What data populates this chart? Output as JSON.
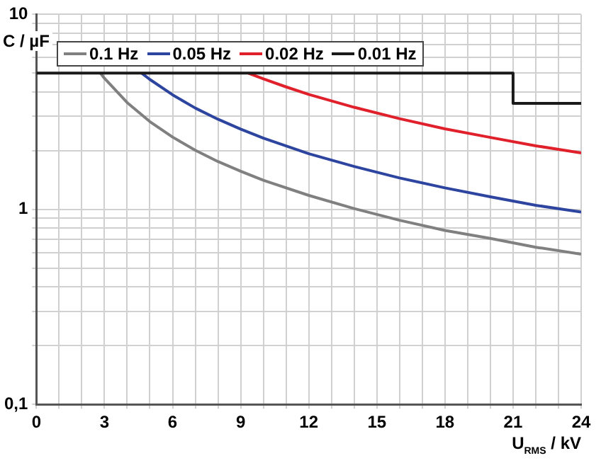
{
  "chart_data": {
    "type": "line",
    "ylabel": "C / µF",
    "xlabel": "U$_{RMS}$ / kV",
    "log": "y",
    "grid": true,
    "legend": "top left",
    "marker": "none",
    "line_style": "solid",
    "xlim": [
      0,
      24
    ],
    "xticks": [
      0,
      {
        "value": 1,
        "label": null
      },
      {
        "value": 2,
        "label": null
      },
      3,
      {
        "value": 4,
        "label": null
      },
      {
        "value": 5,
        "label": null
      },
      6,
      {
        "value": 7,
        "label": null
      },
      {
        "value": 8,
        "label": null
      },
      9,
      {
        "value": 10,
        "label": null
      },
      {
        "value": 11,
        "label": null
      },
      12,
      {
        "value": 13,
        "label": null
      },
      {
        "value": 14,
        "label": null
      },
      15,
      {
        "value": 16,
        "label": null
      },
      {
        "value": 17,
        "label": null
      },
      18,
      {
        "value": 19,
        "label": null
      },
      {
        "value": 20,
        "label": null
      },
      21,
      {
        "value": 22,
        "label": null
      },
      {
        "value": 23,
        "label": null
      },
      24
    ],
    "ylim": [
      0.1,
      10
    ],
    "yticks": [
      {
        "value": 0.1,
        "label": "0,1"
      },
      {
        "value": 0.2,
        "label": null
      },
      {
        "value": 0.3,
        "label": null
      },
      {
        "value": 0.4,
        "label": null
      },
      {
        "value": 0.5,
        "label": null
      },
      {
        "value": 0.6,
        "label": null
      },
      {
        "value": 0.7,
        "label": null
      },
      {
        "value": 0.8,
        "label": null
      },
      {
        "value": 0.9,
        "label": null
      },
      1,
      {
        "value": 2,
        "label": null
      },
      {
        "value": 3,
        "label": null
      },
      {
        "value": 4,
        "label": null
      },
      {
        "value": 5,
        "label": null
      },
      {
        "value": 6,
        "label": null
      },
      {
        "value": 7,
        "label": null
      },
      {
        "value": 8,
        "label": null
      },
      {
        "value": 9,
        "label": null
      },
      10
    ],
    "series": [
      {
        "name": "0.1 Hz",
        "color": "#808080",
        "x": [
          2.82,
          3,
          4,
          5,
          6,
          7,
          8,
          9,
          10,
          12,
          14,
          16,
          18,
          20,
          22,
          24
        ],
        "values": [
          5,
          4.7,
          3.53,
          2.82,
          2.35,
          2.01,
          1.76,
          1.57,
          1.41,
          1.18,
          1.01,
          0.88,
          0.78,
          0.71,
          0.64,
          0.59
        ]
      },
      {
        "name": "0.05 Hz",
        "color": "#2e45a0",
        "x": [
          4.64,
          5,
          6,
          7,
          8,
          9,
          10,
          12,
          14,
          16,
          18,
          20,
          22,
          24
        ],
        "values": [
          5,
          4.64,
          3.87,
          3.31,
          2.9,
          2.58,
          2.32,
          1.93,
          1.66,
          1.45,
          1.29,
          1.16,
          1.05,
          0.97
        ]
      },
      {
        "name": "0.02 Hz",
        "color": "#e0212b",
        "x": [
          9.34,
          10,
          11,
          12,
          14,
          16,
          18,
          20,
          22,
          24
        ],
        "values": [
          5,
          4.67,
          4.25,
          3.89,
          3.34,
          2.92,
          2.59,
          2.34,
          2.12,
          1.95
        ]
      },
      {
        "name": "0.01 Hz",
        "color": "#1a1a1a",
        "x": [
          0,
          21,
          21,
          24
        ],
        "values": [
          5,
          5,
          3.5,
          3.5
        ]
      }
    ]
  }
}
